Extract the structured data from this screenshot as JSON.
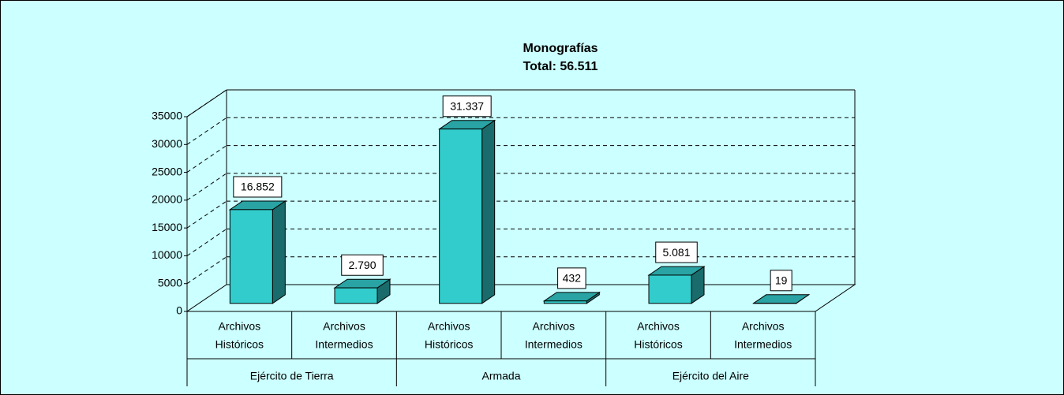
{
  "chart_data": {
    "type": "bar3d",
    "title": "Monografías",
    "subtitle": "Total: 56.511",
    "categories": [
      [
        "Archivos",
        "Históricos"
      ],
      [
        "Archivos",
        "Intermedios"
      ],
      [
        "Archivos",
        "Históricos"
      ],
      [
        "Archivos",
        "Intermedios"
      ],
      [
        "Archivos",
        "Históricos"
      ],
      [
        "Archivos",
        "Intermedios"
      ]
    ],
    "groups": [
      "Ejército de Tierra",
      "Armada",
      "Ejército del Aire"
    ],
    "values": [
      16852,
      2790,
      31337,
      432,
      5081,
      19
    ],
    "value_labels": [
      "16.852",
      "2.790",
      "31.337",
      "432",
      "5.081",
      "19"
    ],
    "color": "#33cccc",
    "ylim": [
      0,
      35000
    ],
    "yticks": [
      0,
      5000,
      10000,
      15000,
      20000,
      25000,
      30000,
      35000
    ],
    "grid": true
  }
}
